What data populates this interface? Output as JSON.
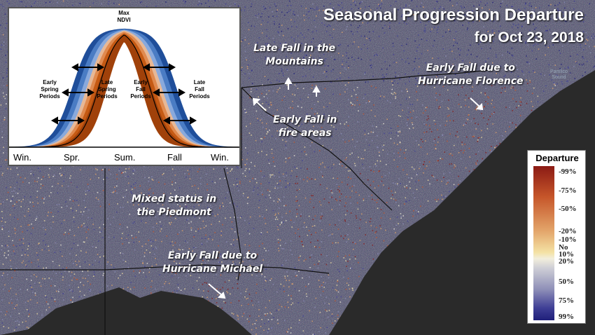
{
  "title": "Seasonal Progression Departure",
  "subtitle": "for Oct 23, 2018",
  "annotations": {
    "late_fall_mountains": [
      "Late Fall in the",
      "Mountains"
    ],
    "early_fall_fire": [
      "Early Fall in",
      "fire areas"
    ],
    "early_fall_florence": [
      "Early Fall due to",
      "Hurricane Florence"
    ],
    "mixed_piedmont": [
      "Mixed status in",
      "the Piedmont"
    ],
    "early_fall_michael": [
      "Early Fall due to",
      "Hurricane Michael"
    ]
  },
  "place_label": [
    "Pamlico",
    "Sound"
  ],
  "inset": {
    "max_label": [
      "Max",
      "NDVI"
    ],
    "early_spring": [
      "Early",
      "Spring",
      "Periods"
    ],
    "late_spring": [
      "Late",
      "Spring",
      "Periods"
    ],
    "early_fall": [
      "Early",
      "Fall",
      "Periods"
    ],
    "late_fall": [
      "Late",
      "Fall",
      "Periods"
    ],
    "seasons": [
      "Win.",
      "Spr.",
      "Sum.",
      "Fall",
      "Win."
    ],
    "colors": {
      "early": [
        "#1f4e9a",
        "#4a7cc4",
        "#89a9dc",
        "#b9cbe8"
      ],
      "late": [
        "#e7b896",
        "#e08a4f",
        "#c55a14",
        "#a0410a"
      ]
    }
  },
  "legend": {
    "title": "Departure",
    "ticks": [
      "-99%",
      "-75%",
      "-50%",
      "-20%",
      "-10%",
      "No",
      "10%",
      "20%",
      "50%",
      "75%",
      "99%"
    ],
    "colors": [
      "#8b1a14",
      "#c6562a",
      "#e3a56a",
      "#f4e2a4",
      "#f2eedc",
      "#cfcfd6",
      "#8e8fb8",
      "#3f3f96",
      "#1f1f7a"
    ]
  },
  "colors": {
    "background": "#2b2b2b",
    "land": "#3a3a3a",
    "ocean": "#2b2b2b",
    "border": "#111111"
  }
}
